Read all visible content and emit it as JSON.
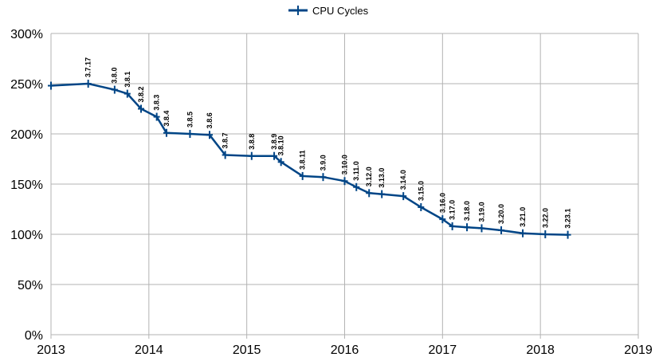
{
  "chart_data": {
    "type": "line",
    "title": "",
    "xlabel": "",
    "ylabel": "",
    "x_ticks": [
      "2013",
      "2014",
      "2015",
      "2016",
      "2017",
      "2018",
      "2019"
    ],
    "y_ticks": [
      "0%",
      "50%",
      "100%",
      "150%",
      "200%",
      "250%",
      "300%"
    ],
    "xlim": [
      2013,
      2019
    ],
    "ylim": [
      0,
      300
    ],
    "grid": true,
    "legend": "top-center",
    "series": [
      {
        "name": "CPU Cycles",
        "color": "#004586",
        "points": [
          {
            "x": 2013.0,
            "y": 248,
            "label": ""
          },
          {
            "x": 2013.38,
            "y": 250,
            "label": "3.7.17"
          },
          {
            "x": 2013.65,
            "y": 244,
            "label": "3.8.0"
          },
          {
            "x": 2013.78,
            "y": 240,
            "label": "3.8.1"
          },
          {
            "x": 2013.92,
            "y": 225,
            "label": "3.8.2"
          },
          {
            "x": 2014.08,
            "y": 217,
            "label": "3.8.3"
          },
          {
            "x": 2014.18,
            "y": 201,
            "label": "3.8.4"
          },
          {
            "x": 2014.42,
            "y": 200,
            "label": "3.8.5"
          },
          {
            "x": 2014.62,
            "y": 199,
            "label": "3.8.6"
          },
          {
            "x": 2014.78,
            "y": 179,
            "label": "3.8.7"
          },
          {
            "x": 2015.05,
            "y": 178,
            "label": "3.8.8"
          },
          {
            "x": 2015.28,
            "y": 178,
            "label": "3.8.9"
          },
          {
            "x": 2015.35,
            "y": 172,
            "label": "3.8.10"
          },
          {
            "x": 2015.57,
            "y": 158,
            "label": "3.8.11"
          },
          {
            "x": 2015.78,
            "y": 157,
            "label": "3.9.0"
          },
          {
            "x": 2016.0,
            "y": 153,
            "label": "3.10.0"
          },
          {
            "x": 2016.12,
            "y": 147,
            "label": "3.11.0"
          },
          {
            "x": 2016.25,
            "y": 141,
            "label": "3.12.0"
          },
          {
            "x": 2016.38,
            "y": 140,
            "label": "3.13.0"
          },
          {
            "x": 2016.6,
            "y": 138,
            "label": "3.14.0"
          },
          {
            "x": 2016.78,
            "y": 127,
            "label": "3.15.0"
          },
          {
            "x": 2017.0,
            "y": 115,
            "label": "3.16.0"
          },
          {
            "x": 2017.1,
            "y": 108,
            "label": "3.17.0"
          },
          {
            "x": 2017.25,
            "y": 107,
            "label": "3.18.0"
          },
          {
            "x": 2017.4,
            "y": 106,
            "label": "3.19.0"
          },
          {
            "x": 2017.6,
            "y": 104,
            "label": "3.20.0"
          },
          {
            "x": 2017.82,
            "y": 101,
            "label": "3.21.0"
          },
          {
            "x": 2018.05,
            "y": 100,
            "label": "3.22.0"
          },
          {
            "x": 2018.28,
            "y": 99.5,
            "label": "3.23.1"
          }
        ]
      }
    ]
  }
}
